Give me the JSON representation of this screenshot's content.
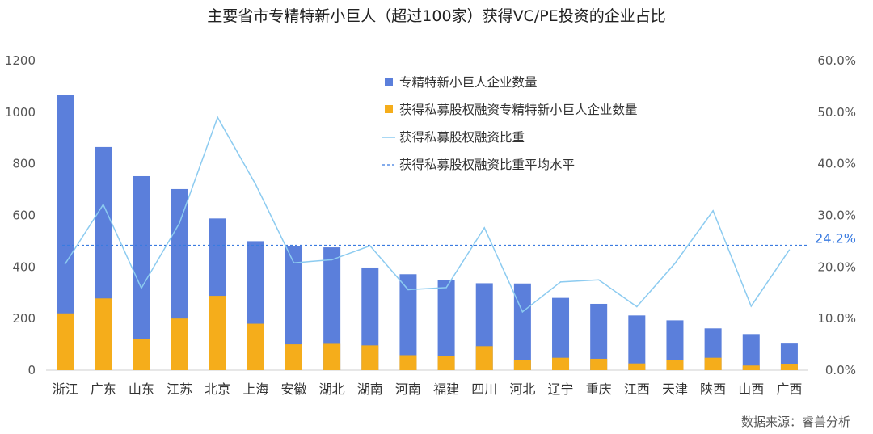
{
  "chart_data": {
    "type": "bar",
    "title": "主要省市专精特新小巨人（超过100家）获得VC/PE投资的企业占比",
    "categories": [
      "浙江",
      "广东",
      "山东",
      "江苏",
      "北京",
      "上海",
      "安徽",
      "湖北",
      "湖南",
      "河南",
      "福建",
      "四川",
      "河北",
      "辽宁",
      "重庆",
      "江西",
      "天津",
      "陕西",
      "山西",
      "广西"
    ],
    "series": [
      {
        "name": "专精特新小巨人企业数量",
        "type": "bar",
        "axis": "left",
        "color": "#5b7fdb",
        "values": [
          1068,
          865,
          752,
          702,
          588,
          500,
          480,
          476,
          398,
          372,
          350,
          337,
          336,
          280,
          257,
          212,
          193,
          162,
          140,
          103
        ]
      },
      {
        "name": "获得私募股权融资专精特新小巨人企业数量",
        "type": "bar",
        "axis": "left",
        "color": "#f5ad1b",
        "values": [
          220,
          278,
          120,
          200,
          288,
          180,
          100,
          102,
          96,
          58,
          56,
          93,
          38,
          48,
          44,
          26,
          40,
          48,
          18,
          24
        ]
      },
      {
        "name": "获得私募股权融资比重",
        "type": "line",
        "axis": "right",
        "color": "#8ccbf0",
        "values": [
          20.6,
          32.1,
          15.9,
          28.5,
          49.0,
          36.0,
          20.8,
          21.4,
          24.1,
          15.6,
          16.0,
          27.6,
          11.3,
          17.1,
          17.5,
          12.3,
          20.7,
          30.9,
          12.4,
          23.3
        ]
      },
      {
        "name": "获得私募股权融资比重平均水平",
        "type": "dashed",
        "axis": "right",
        "color": "#3a7be0",
        "value": 24.2
      }
    ],
    "avg_label": "24.2%",
    "ylim": [
      0,
      1200
    ],
    "y_ticks": [
      "0",
      "200",
      "400",
      "600",
      "800",
      "1000",
      "1200"
    ],
    "y2lim": [
      0,
      60
    ],
    "y2_ticks": [
      "0.0%",
      "10.0%",
      "20.0%",
      "30.0%",
      "40.0%",
      "50.0%",
      "60.0%"
    ],
    "grid": false,
    "legend_position": "top-right",
    "source": "数据来源：睿兽分析"
  }
}
